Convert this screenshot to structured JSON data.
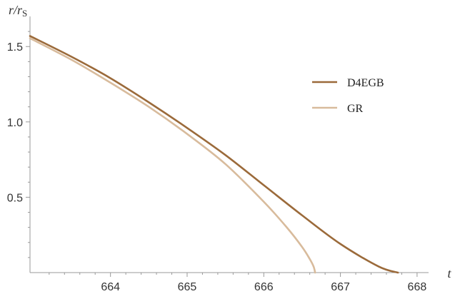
{
  "chart_data": {
    "type": "line",
    "xlabel": "t",
    "ylabel": {
      "main": "r/r",
      "sub": "S"
    },
    "xlim": [
      662.95,
      668.15
    ],
    "ylim": [
      0,
      1.7
    ],
    "x_ticks": [
      664,
      665,
      666,
      667,
      668
    ],
    "x_tick_labels": [
      "664",
      "665",
      "666",
      "667",
      "668"
    ],
    "y_ticks": [
      0.5,
      1.0,
      1.5
    ],
    "y_tick_labels": [
      "0.5",
      "1.0",
      "1.5"
    ],
    "legend_position": "right",
    "series": [
      {
        "name": "D4EGB",
        "color": "#9b6a3a",
        "x": [
          662.95,
          663.5,
          664.0,
          664.5,
          665.0,
          665.5,
          666.0,
          666.5,
          667.0,
          667.5,
          667.75
        ],
        "y": [
          1.57,
          1.43,
          1.29,
          1.13,
          0.96,
          0.78,
          0.58,
          0.38,
          0.19,
          0.04,
          0.0
        ]
      },
      {
        "name": "GR",
        "color": "#d8bb9c",
        "x": [
          662.95,
          663.5,
          664.0,
          664.5,
          665.0,
          665.5,
          666.0,
          666.3,
          666.5,
          666.6,
          666.65,
          666.67
        ],
        "y": [
          1.555,
          1.41,
          1.26,
          1.1,
          0.92,
          0.72,
          0.47,
          0.3,
          0.17,
          0.09,
          0.04,
          0.0
        ]
      }
    ]
  }
}
